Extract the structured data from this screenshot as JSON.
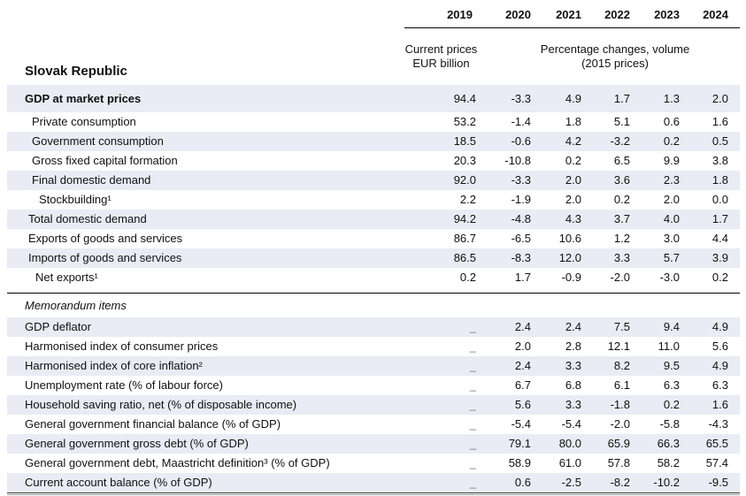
{
  "title": "Slovak Republic",
  "years": [
    "2019",
    "2020",
    "2021",
    "2022",
    "2023",
    "2024"
  ],
  "header": {
    "current_prices_caption": [
      "Current prices",
      "EUR billion"
    ],
    "volume_caption": [
      "Percentage changes, volume",
      "(2015 prices)"
    ]
  },
  "sections": [
    {
      "name": "main",
      "rows": [
        {
          "label": "GDP at market prices",
          "indent": 0,
          "bold": true,
          "shaded": true,
          "values": [
            "94.4",
            "-3.3",
            "4.9",
            "1.7",
            "1.3",
            "2.0"
          ]
        },
        {
          "label": "Private consumption",
          "indent": 2,
          "bold": false,
          "shaded": false,
          "values": [
            "53.2",
            "-1.4",
            "1.8",
            "5.1",
            "0.6",
            "1.6"
          ]
        },
        {
          "label": "Government consumption",
          "indent": 2,
          "bold": false,
          "shaded": true,
          "values": [
            "18.5",
            "-0.6",
            "4.2",
            "-3.2",
            "0.2",
            "0.5"
          ]
        },
        {
          "label": "Gross fixed capital formation",
          "indent": 2,
          "bold": false,
          "shaded": false,
          "values": [
            "20.3",
            "-10.8",
            "0.2",
            "6.5",
            "9.9",
            "3.8"
          ]
        },
        {
          "label": "Final domestic demand",
          "indent": 2,
          "bold": false,
          "shaded": true,
          "values": [
            "92.0",
            "-3.3",
            "2.0",
            "3.6",
            "2.3",
            "1.8"
          ]
        },
        {
          "label": "Stockbuilding¹",
          "indent": 4,
          "bold": false,
          "shaded": false,
          "values": [
            "2.2",
            "-1.9",
            "2.0",
            "0.2",
            "2.0",
            "0.0"
          ]
        },
        {
          "label": "Total domestic demand",
          "indent": 1,
          "bold": false,
          "shaded": true,
          "values": [
            "94.2",
            "-4.8",
            "4.3",
            "3.7",
            "4.0",
            "1.7"
          ]
        },
        {
          "label": "Exports of goods and services",
          "indent": 1,
          "bold": false,
          "shaded": false,
          "values": [
            "86.7",
            "-6.5",
            "10.6",
            "1.2",
            "3.0",
            "4.4"
          ]
        },
        {
          "label": "Imports of goods and services",
          "indent": 1,
          "bold": false,
          "shaded": true,
          "values": [
            "86.5",
            "-8.3",
            "12.0",
            "3.3",
            "5.7",
            "3.9"
          ]
        },
        {
          "label": "Net exports¹",
          "indent": 3,
          "bold": false,
          "shaded": false,
          "values": [
            "0.2",
            "1.7",
            "-0.9",
            "-2.0",
            "-3.0",
            "0.2"
          ]
        }
      ]
    },
    {
      "name": "memorandum",
      "section_header": "Memorandum items",
      "rows": [
        {
          "label": "GDP deflator",
          "indent": 0,
          "bold": false,
          "shaded": true,
          "values": [
            "_",
            "2.4",
            "2.4",
            "7.5",
            "9.4",
            "4.9"
          ]
        },
        {
          "label": "Harmonised index of consumer prices",
          "indent": 0,
          "bold": false,
          "shaded": false,
          "values": [
            "_",
            "2.0",
            "2.8",
            "12.1",
            "11.0",
            "5.6"
          ]
        },
        {
          "label": "Harmonised index of core inflation²",
          "indent": 0,
          "bold": false,
          "shaded": true,
          "values": [
            "_",
            "2.4",
            "3.3",
            "8.2",
            "9.5",
            "4.9"
          ]
        },
        {
          "label": "Unemployment rate (% of labour force)",
          "indent": 0,
          "bold": false,
          "shaded": false,
          "values": [
            "_",
            "6.7",
            "6.8",
            "6.1",
            "6.3",
            "6.3"
          ]
        },
        {
          "label": "Household saving ratio, net (% of disposable income)",
          "indent": 0,
          "bold": false,
          "shaded": true,
          "values": [
            "_",
            "5.6",
            "3.3",
            "-1.8",
            "0.2",
            "1.6"
          ]
        },
        {
          "label": "General government financial balance (% of GDP)",
          "indent": 0,
          "bold": false,
          "shaded": false,
          "values": [
            "_",
            "-5.4",
            "-5.4",
            "-2.0",
            "-5.8",
            "-4.3"
          ]
        },
        {
          "label": "General government gross debt (% of GDP)",
          "indent": 0,
          "bold": false,
          "shaded": true,
          "values": [
            "_",
            "79.1",
            "80.0",
            "65.9",
            "66.3",
            "65.5"
          ]
        },
        {
          "label": "General government debt, Maastricht definition³ (% of GDP)",
          "indent": 0,
          "bold": false,
          "shaded": false,
          "values": [
            "_",
            "58.9",
            "61.0",
            "57.8",
            "58.2",
            "57.4"
          ]
        },
        {
          "label": "Current account balance (% of GDP)",
          "indent": 0,
          "bold": false,
          "shaded": true,
          "values": [
            "_",
            "0.6",
            "-2.5",
            "-8.2",
            "-10.2",
            "-9.5"
          ]
        }
      ]
    }
  ],
  "colors": {
    "row_shade": "#eaebf4",
    "text": "#111111",
    "dash": "#808080",
    "header_rule": "#000000",
    "bottom_rule_dark": "#3c3c3c",
    "bottom_rule_light": "#9a9a9a"
  }
}
